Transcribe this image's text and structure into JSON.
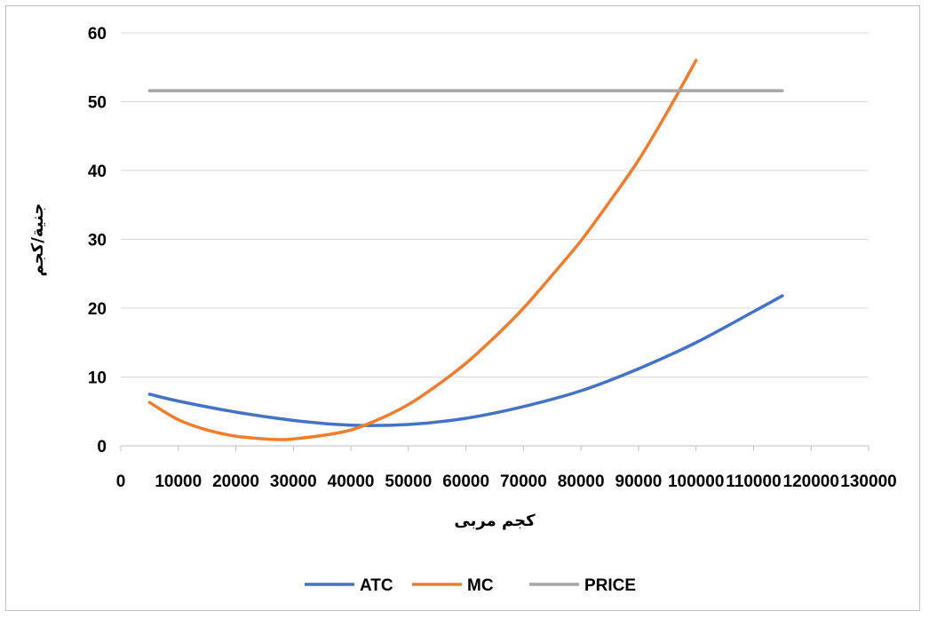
{
  "chart_data": {
    "type": "line",
    "xlabel": "كجم مربى",
    "ylabel": "جنية/كجم",
    "xlim": [
      0,
      130000
    ],
    "ylim": [
      0,
      60
    ],
    "x_ticks": [
      "0",
      "10000",
      "20000",
      "30000",
      "40000",
      "50000",
      "60000",
      "70000",
      "80000",
      "90000",
      "100000",
      "110000",
      "120000",
      "130000"
    ],
    "y_ticks": [
      "0",
      "10",
      "20",
      "30",
      "40",
      "50",
      "60"
    ],
    "grid": "horizontal",
    "legend_position": "bottom",
    "series": [
      {
        "name": "ATC",
        "color": "#4472C4",
        "x": [
          5000,
          10000,
          20000,
          30000,
          40000,
          50000,
          60000,
          70000,
          80000,
          90000,
          100000,
          110000,
          115000
        ],
        "y": [
          7.5,
          6.5,
          4.9,
          3.7,
          3.0,
          3.1,
          4.0,
          5.7,
          8.0,
          11.2,
          15.0,
          19.5,
          21.8
        ]
      },
      {
        "name": "MC",
        "color": "#ED7D31",
        "x": [
          5000,
          10000,
          15000,
          20000,
          25000,
          28000,
          30000,
          35000,
          40000,
          45000,
          50000,
          55000,
          60000,
          65000,
          70000,
          75000,
          80000,
          85000,
          90000,
          95000,
          100000
        ],
        "y": [
          6.3,
          3.8,
          2.3,
          1.4,
          1.0,
          0.9,
          1.0,
          1.5,
          2.3,
          3.9,
          6.0,
          8.8,
          12.0,
          15.8,
          20.0,
          24.8,
          29.8,
          35.5,
          41.5,
          48.5,
          56.0
        ]
      },
      {
        "name": "PRICE",
        "color": "#A5A5A5",
        "x": [
          5000,
          115000
        ],
        "y": [
          51.6,
          51.6
        ]
      }
    ]
  }
}
